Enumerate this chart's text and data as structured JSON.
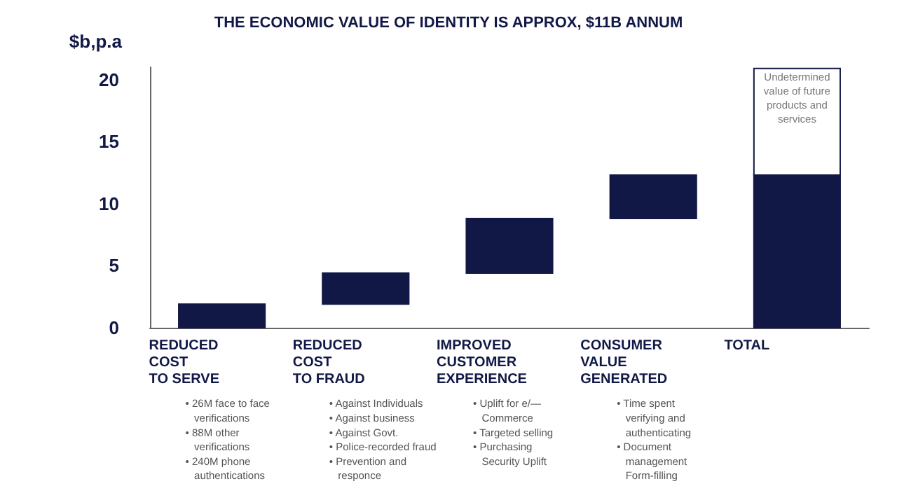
{
  "chart_data": {
    "type": "bar",
    "title": "THE ECONOMIC VALUE OF IDENTITY IS APPROX, $11B ANNUM",
    "ylabel": "$b,p.a",
    "categories": [
      "REDUCED\nCOST\nTO SERVE",
      "REDUCED\nCOST\nTO FRAUD",
      "IMPROVED\nCUSTOMER\nEXPERIENCE",
      "CONSUMER\nVALUE\nGENERATED",
      "TOTAL"
    ],
    "series": [
      {
        "color": "#111846",
        "values": [
          1.9,
          2.5,
          4.4,
          3.5,
          12.3
        ],
        "base": [
          0,
          1.9,
          4.4,
          8.8,
          0
        ]
      },
      {
        "color": "#ffffff",
        "values": [
          null,
          null,
          null,
          null,
          8.6
        ],
        "base": [
          null,
          null,
          null,
          null,
          12.3
        ]
      }
    ],
    "ylim": [
      0,
      21
    ],
    "yticks": [
      0,
      5,
      10,
      15,
      20
    ],
    "grid": false,
    "annotations": [
      "• 26M face to face\n   verifications\n• 88M other\n   verifications\n• 240M phone\n   authentications",
      "• Against Individuals\n• Against business\n• Against Govt.\n• Police-recorded fraud\n• Prevention and\n   responce",
      "• Uplift for e/—\n   Commerce\n• Targeted selling\n• Purchasing\n   Security Uplift",
      "• Time spent\n   verifying and\n   authenticating\n• Document\n   management\n   Form-filling",
      {
        "text": "Undetermined\nvalue of future\nproducts and\nservices",
        "x": "TOTAL",
        "y": 18.5
      }
    ]
  }
}
